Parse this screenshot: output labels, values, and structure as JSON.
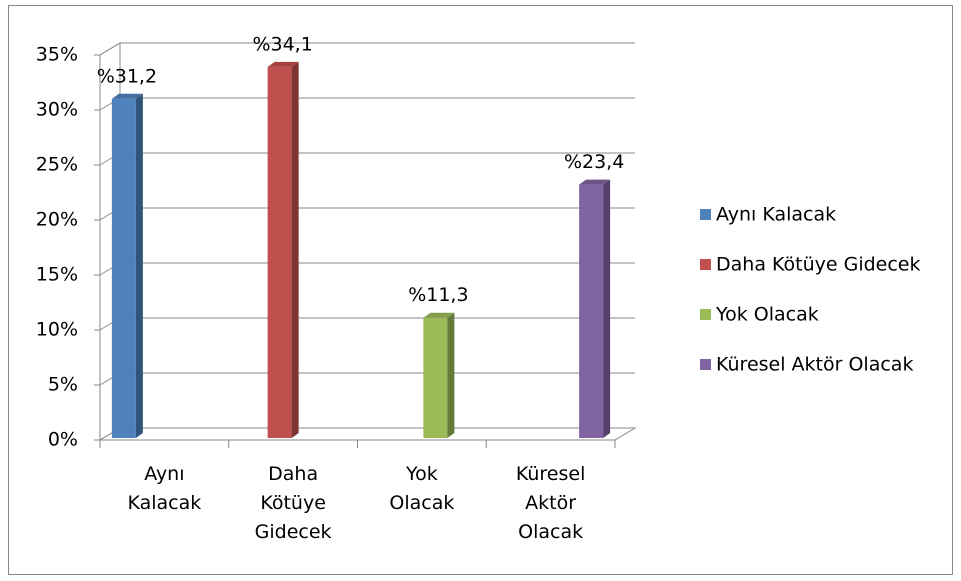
{
  "chart_data": {
    "type": "bar3d",
    "categories": [
      "Aynı Kalacak",
      "Daha Kötüye Gidecek",
      "Yok Olacak",
      "Küresel Aktör Olacak"
    ],
    "values": [
      31.2,
      34.1,
      11.3,
      23.4
    ],
    "value_labels": [
      "%31,2",
      "%34,1",
      "%11,3",
      "%23,4"
    ],
    "colors": [
      "#4f81bd",
      "#c0504d",
      "#9bbb59",
      "#8064a2"
    ],
    "ylim": [
      0,
      35
    ],
    "yticks": [
      {
        "value": 0,
        "label": "0%"
      },
      {
        "value": 5,
        "label": "5%"
      },
      {
        "value": 10,
        "label": "10%"
      },
      {
        "value": 15,
        "label": "15%"
      },
      {
        "value": 20,
        "label": "20%"
      },
      {
        "value": 25,
        "label": "25%"
      },
      {
        "value": 30,
        "label": "30%"
      },
      {
        "value": 35,
        "label": "35%"
      }
    ],
    "grid": true,
    "legend": "right"
  }
}
